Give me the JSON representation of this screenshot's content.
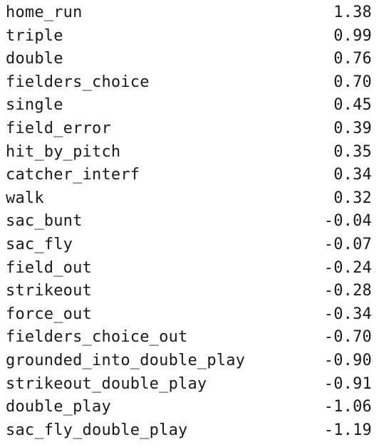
{
  "rows": [
    {
      "label": "home_run",
      "value": "1.38"
    },
    {
      "label": "triple",
      "value": "0.99"
    },
    {
      "label": "double",
      "value": "0.76"
    },
    {
      "label": "fielders_choice",
      "value": "0.70"
    },
    {
      "label": "single",
      "value": "0.45"
    },
    {
      "label": "field_error",
      "value": "0.39"
    },
    {
      "label": "hit_by_pitch",
      "value": "0.35"
    },
    {
      "label": "catcher_interf",
      "value": "0.34"
    },
    {
      "label": "walk",
      "value": "0.32"
    },
    {
      "label": "sac_bunt",
      "value": "-0.04"
    },
    {
      "label": "sac_fly",
      "value": "-0.07"
    },
    {
      "label": "field_out",
      "value": "-0.24"
    },
    {
      "label": "strikeout",
      "value": "-0.28"
    },
    {
      "label": "force_out",
      "value": "-0.34"
    },
    {
      "label": "fielders_choice_out",
      "value": "-0.70"
    },
    {
      "label": "grounded_into_double_play",
      "value": "-0.90"
    },
    {
      "label": "strikeout_double_play",
      "value": "-0.91"
    },
    {
      "label": "double_play",
      "value": "-1.06"
    },
    {
      "label": "sac_fly_double_play",
      "value": "-1.19"
    }
  ]
}
